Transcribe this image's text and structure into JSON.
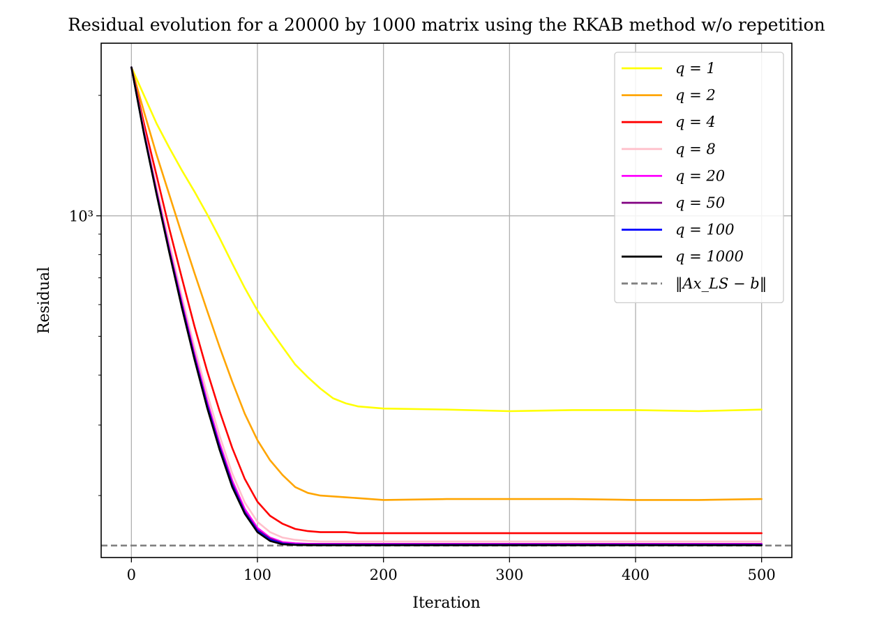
{
  "chart_data": {
    "type": "line",
    "title": "Residual evolution for a 20000 by 1000 matrix using the RKAB method w/o repetition",
    "xlabel": "Iteration",
    "ylabel": "Residual",
    "xlim": [
      -24,
      524
    ],
    "ylim": [
      140,
      2700
    ],
    "y_scale": "log",
    "x_ticks": [
      0,
      100,
      200,
      300,
      400,
      500
    ],
    "x_tick_labels": [
      "0",
      "100",
      "200",
      "300",
      "400",
      "500"
    ],
    "y_major_ticks": [
      1000
    ],
    "y_tick_labels": [
      "10³"
    ],
    "y_minor_ticks": [
      200,
      300,
      400,
      500,
      600,
      700,
      800,
      900,
      2000
    ],
    "grid": true,
    "legend_position": "top-right",
    "reference_line": {
      "label": "‖Ax_LS − b‖",
      "value": 150,
      "color": "#808080",
      "style": "dashed"
    },
    "iterations": [
      0,
      10,
      20,
      30,
      40,
      50,
      60,
      70,
      80,
      90,
      100,
      110,
      120,
      130,
      140,
      150,
      160,
      170,
      180,
      200,
      250,
      300,
      350,
      400,
      450,
      500
    ],
    "series": [
      {
        "name": "q = 1",
        "color": "#ffff00",
        "values": [
          2350,
          2000,
          1700,
          1480,
          1300,
          1150,
          1010,
          880,
          760,
          660,
          580,
          520,
          470,
          425,
          395,
          370,
          350,
          340,
          334,
          330,
          328,
          325,
          327,
          327,
          325,
          328
        ]
      },
      {
        "name": "q = 2",
        "color": "#ffa500",
        "values": [
          2350,
          1820,
          1420,
          1130,
          900,
          720,
          580,
          470,
          385,
          320,
          275,
          245,
          225,
          210,
          203,
          200,
          199,
          198,
          197,
          195,
          196,
          196,
          196,
          195,
          195,
          196
        ]
      },
      {
        "name": "q = 4",
        "color": "#ff0000",
        "values": [
          2350,
          1700,
          1260,
          930,
          700,
          530,
          410,
          325,
          263,
          220,
          193,
          178,
          170,
          165,
          163,
          162,
          162,
          162,
          161,
          161,
          161,
          161,
          161,
          161,
          161,
          161
        ]
      },
      {
        "name": "q = 8",
        "color": "#ffc0cb",
        "values": [
          2350,
          1640,
          1180,
          860,
          630,
          470,
          360,
          282,
          227,
          192,
          172,
          162,
          157,
          155,
          154,
          153.5,
          153.5,
          153.5,
          153.5,
          153.5,
          153.5,
          153.5,
          153.5,
          153.5,
          153.5,
          153.5
        ]
      },
      {
        "name": "q = 20",
        "color": "#ff00ff",
        "values": [
          2350,
          1620,
          1150,
          830,
          610,
          453,
          345,
          270,
          218,
          185,
          166,
          157,
          153,
          152,
          151.5,
          151.5,
          151.5,
          151.5,
          151.5,
          151.5,
          151.5,
          151.5,
          151.5,
          151.5,
          151.5,
          151.5
        ]
      },
      {
        "name": "q = 50",
        "color": "#800080",
        "values": [
          2350,
          1610,
          1140,
          820,
          600,
          445,
          338,
          265,
          214,
          182,
          164,
          156,
          152,
          151,
          151,
          151,
          151,
          151,
          151,
          151,
          151,
          151,
          151,
          151,
          151,
          151
        ]
      },
      {
        "name": "q = 100",
        "color": "#0000ff",
        "values": [
          2350,
          1605,
          1135,
          815,
          596,
          442,
          336,
          263,
          212,
          181,
          163,
          155,
          151.5,
          150.8,
          150.5,
          150.5,
          150.5,
          150.5,
          150.5,
          150.5,
          150.5,
          150.5,
          150.5,
          150.5,
          150.5,
          150.5
        ]
      },
      {
        "name": "q = 1000",
        "color": "#000000",
        "values": [
          2350,
          1600,
          1130,
          810,
          590,
          438,
          332,
          260,
          210,
          180,
          162,
          154,
          151,
          150.5,
          150.3,
          150.2,
          150.2,
          150.2,
          150.2,
          150.2,
          150.2,
          150.2,
          150.2,
          150.2,
          150.2,
          150.2
        ]
      }
    ]
  }
}
